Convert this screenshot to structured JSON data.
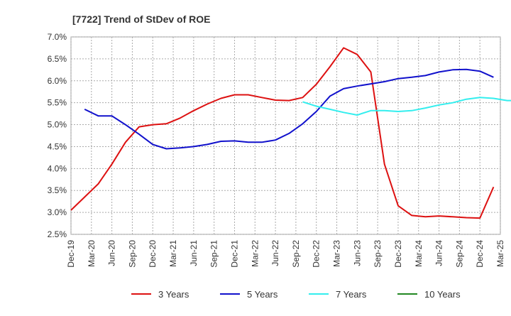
{
  "chart_data": {
    "type": "line",
    "title": "[7722]  Trend of StDev of ROE",
    "xlabel": "",
    "ylabel": "",
    "ylim": [
      2.5,
      7.0
    ],
    "y_ticks": [
      "7.0%",
      "6.5%",
      "6.0%",
      "5.5%",
      "5.0%",
      "4.5%",
      "4.0%",
      "3.5%",
      "3.0%",
      "2.5%"
    ],
    "y_tick_values": [
      7.0,
      6.5,
      6.0,
      5.5,
      5.0,
      4.5,
      4.0,
      3.5,
      3.0,
      2.5
    ],
    "x_ticks": [
      "Dec-19",
      "Mar-20",
      "Jun-20",
      "Sep-20",
      "Dec-20",
      "Mar-21",
      "Jun-21",
      "Sep-21",
      "Dec-21",
      "Mar-22",
      "Jun-22",
      "Sep-22",
      "Dec-22",
      "Mar-23",
      "Jun-23",
      "Sep-23",
      "Dec-23",
      "Mar-24",
      "Jun-24",
      "Sep-24",
      "Dec-24",
      "Mar-25"
    ],
    "grid": true,
    "legend_position": "bottom",
    "series": [
      {
        "name": "3 Years",
        "color": "#dd1111",
        "points": [
          [
            0,
            3.05
          ],
          [
            1,
            3.35
          ],
          [
            2,
            3.65
          ],
          [
            3,
            4.1
          ],
          [
            4,
            4.6
          ],
          [
            5,
            4.95
          ],
          [
            6,
            5.0
          ],
          [
            7,
            5.02
          ],
          [
            8,
            5.15
          ],
          [
            9,
            5.32
          ],
          [
            10,
            5.47
          ],
          [
            11,
            5.6
          ],
          [
            12,
            5.68
          ],
          [
            13,
            5.68
          ],
          [
            14,
            5.62
          ],
          [
            15,
            5.56
          ],
          [
            16,
            5.55
          ],
          [
            17,
            5.62
          ],
          [
            18,
            5.92
          ],
          [
            19,
            6.32
          ],
          [
            20,
            6.75
          ],
          [
            21,
            6.6
          ],
          [
            22,
            6.2
          ],
          [
            23,
            4.1
          ],
          [
            24,
            3.15
          ],
          [
            25,
            2.93
          ],
          [
            26,
            2.9
          ],
          [
            27,
            2.92
          ],
          [
            28,
            2.9
          ],
          [
            29,
            2.88
          ],
          [
            30,
            2.87
          ],
          [
            31,
            3.58
          ]
        ]
      },
      {
        "name": "5 Years",
        "color": "#1111cc",
        "points": [
          [
            1,
            5.35
          ],
          [
            2,
            5.2
          ],
          [
            3,
            5.2
          ],
          [
            4,
            5.0
          ],
          [
            5,
            4.78
          ],
          [
            6,
            4.55
          ],
          [
            7,
            4.45
          ],
          [
            8,
            4.47
          ],
          [
            9,
            4.5
          ],
          [
            10,
            4.55
          ],
          [
            11,
            4.62
          ],
          [
            12,
            4.63
          ],
          [
            13,
            4.6
          ],
          [
            14,
            4.6
          ],
          [
            15,
            4.65
          ],
          [
            16,
            4.8
          ],
          [
            17,
            5.02
          ],
          [
            18,
            5.3
          ],
          [
            19,
            5.65
          ],
          [
            20,
            5.82
          ],
          [
            21,
            5.88
          ],
          [
            22,
            5.93
          ],
          [
            23,
            5.98
          ],
          [
            24,
            6.05
          ],
          [
            25,
            6.08
          ],
          [
            26,
            6.12
          ],
          [
            27,
            6.2
          ],
          [
            28,
            6.25
          ],
          [
            29,
            6.26
          ],
          [
            30,
            6.22
          ],
          [
            31,
            6.08
          ]
        ]
      },
      {
        "name": "7 Years",
        "color": "#33eeee",
        "points": [
          [
            17,
            5.52
          ],
          [
            18,
            5.42
          ],
          [
            19,
            5.35
          ],
          [
            20,
            5.28
          ],
          [
            21,
            5.22
          ],
          [
            22,
            5.32
          ],
          [
            23,
            5.32
          ],
          [
            24,
            5.3
          ],
          [
            25,
            5.32
          ],
          [
            26,
            5.38
          ],
          [
            27,
            5.45
          ],
          [
            28,
            5.5
          ],
          [
            29,
            5.58
          ],
          [
            30,
            5.62
          ],
          [
            31,
            5.6
          ],
          [
            32,
            5.55
          ],
          [
            33,
            5.55
          ]
        ]
      },
      {
        "name": "10 Years",
        "color": "#228822",
        "points": []
      }
    ]
  }
}
